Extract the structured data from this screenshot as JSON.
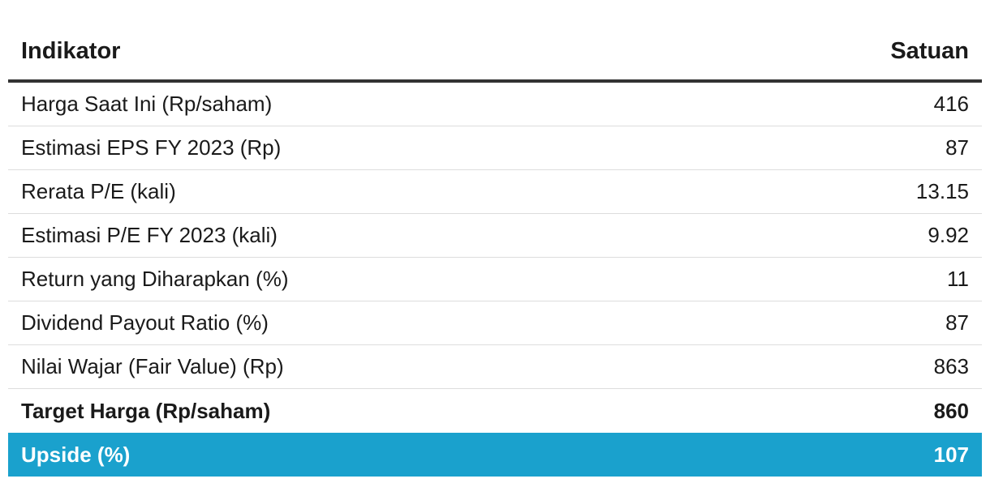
{
  "header": {
    "col_indicator": "Indikator",
    "col_unit": "Satuan"
  },
  "rows": [
    {
      "label": "Harga Saat Ini (Rp/saham)",
      "value": "416"
    },
    {
      "label": "Estimasi EPS FY 2023 (Rp)",
      "value": "87"
    },
    {
      "label": "Rerata P/E (kali)",
      "value": "13.15"
    },
    {
      "label": "Estimasi P/E FY 2023 (kali)",
      "value": "9.92"
    },
    {
      "label": "Return yang Diharapkan (%)",
      "value": "11"
    },
    {
      "label": "Dividend Payout Ratio (%)",
      "value": "87"
    },
    {
      "label": "Nilai Wajar (Fair Value) (Rp)",
      "value": "863"
    },
    {
      "label": "Target Harga (Rp/saham)",
      "value": "860"
    },
    {
      "label": "Upside (%)",
      "value": "107"
    }
  ],
  "colors": {
    "highlight_row_bg": "#1aa1cd",
    "header_rule": "#333333"
  }
}
